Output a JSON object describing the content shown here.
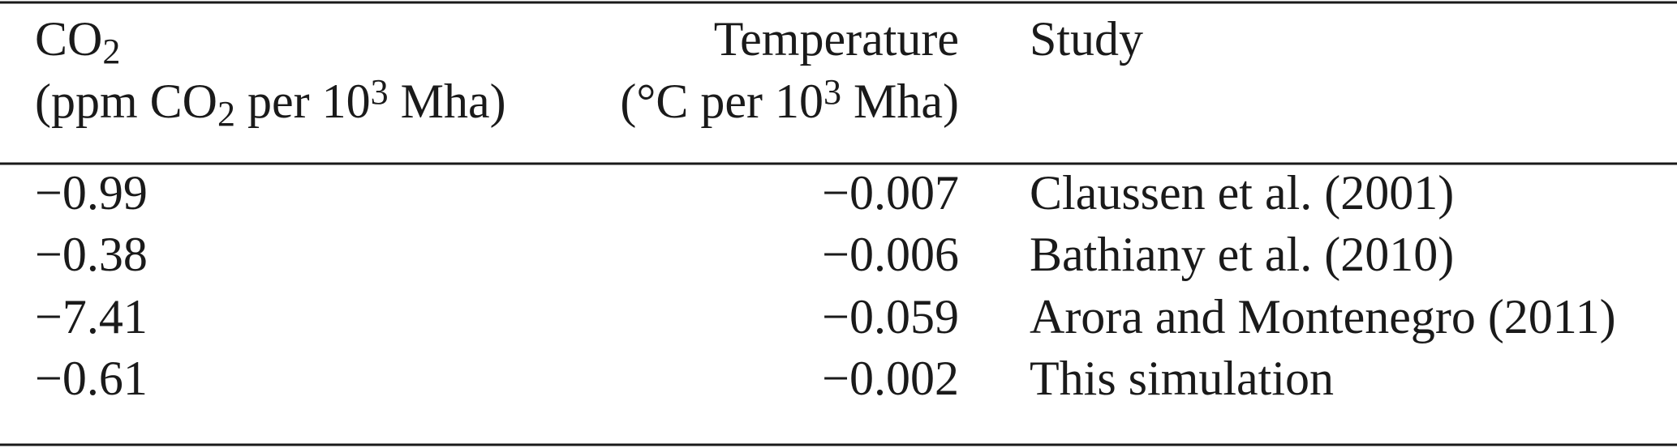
{
  "table": {
    "columns": [
      {
        "align": "left",
        "lines": [
          [
            {
              "text": "CO"
            },
            {
              "text": "2",
              "style": "sub"
            }
          ],
          [
            {
              "text": "(ppm CO"
            },
            {
              "text": "2",
              "style": "sub"
            },
            {
              "text": " per 10"
            },
            {
              "text": "3",
              "style": "sup"
            },
            {
              "text": " Mha)"
            }
          ]
        ]
      },
      {
        "align": "right",
        "lines": [
          [
            {
              "text": "Temperature"
            }
          ],
          [
            {
              "text": "(°C per 10"
            },
            {
              "text": "3",
              "style": "sup"
            },
            {
              "text": " Mha)"
            }
          ]
        ]
      },
      {
        "align": "left",
        "lines": [
          [
            {
              "text": "Study"
            }
          ]
        ]
      }
    ],
    "rows": [
      [
        "−0.99",
        "−0.007",
        "Claussen et al. (2001)"
      ],
      [
        "−0.38",
        "−0.006",
        "Bathiany et al. (2010)"
      ],
      [
        "−7.41",
        "−0.059",
        "Arora and Montenegro (2011)"
      ],
      [
        "−0.61",
        "−0.002",
        "This simulation"
      ]
    ]
  }
}
